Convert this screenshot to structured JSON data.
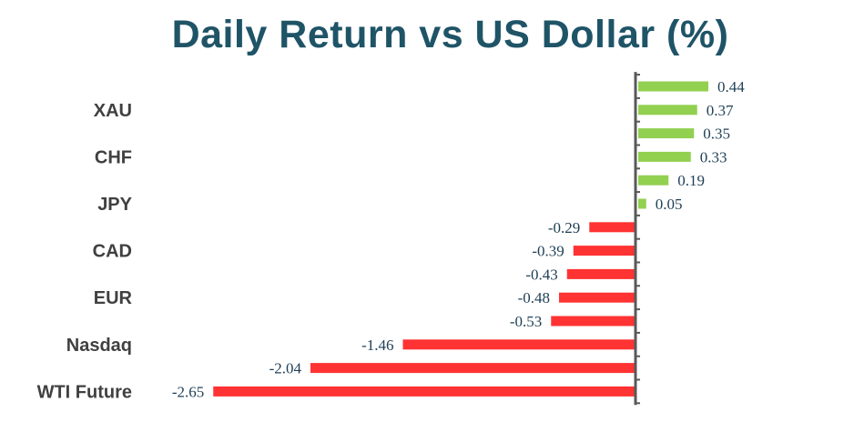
{
  "chart_data": {
    "type": "bar",
    "orientation": "horizontal",
    "title": "Daily Return vs US Dollar (%)",
    "categories": [
      "",
      "XAU",
      "",
      "CHF",
      "",
      "JPY",
      "",
      "CAD",
      "",
      "EUR",
      "",
      "Nasdaq",
      "",
      "WTI Future"
    ],
    "values": [
      0.44,
      0.37,
      0.35,
      0.33,
      0.19,
      0.05,
      -0.29,
      -0.39,
      -0.43,
      -0.48,
      -0.53,
      -1.46,
      -2.04,
      -2.65
    ],
    "value_labels": [
      "0.44",
      "0.37",
      "0.35",
      "0.33",
      "0.19",
      "0.05",
      "-0.29",
      "-0.39",
      "-0.43",
      "-0.48",
      "-0.53",
      "-1.46",
      "-2.04",
      "-2.65"
    ],
    "colors": {
      "positive": "#92d050",
      "negative": "#ff3333",
      "axis": "#595959"
    },
    "grid": false,
    "legend": "none"
  }
}
